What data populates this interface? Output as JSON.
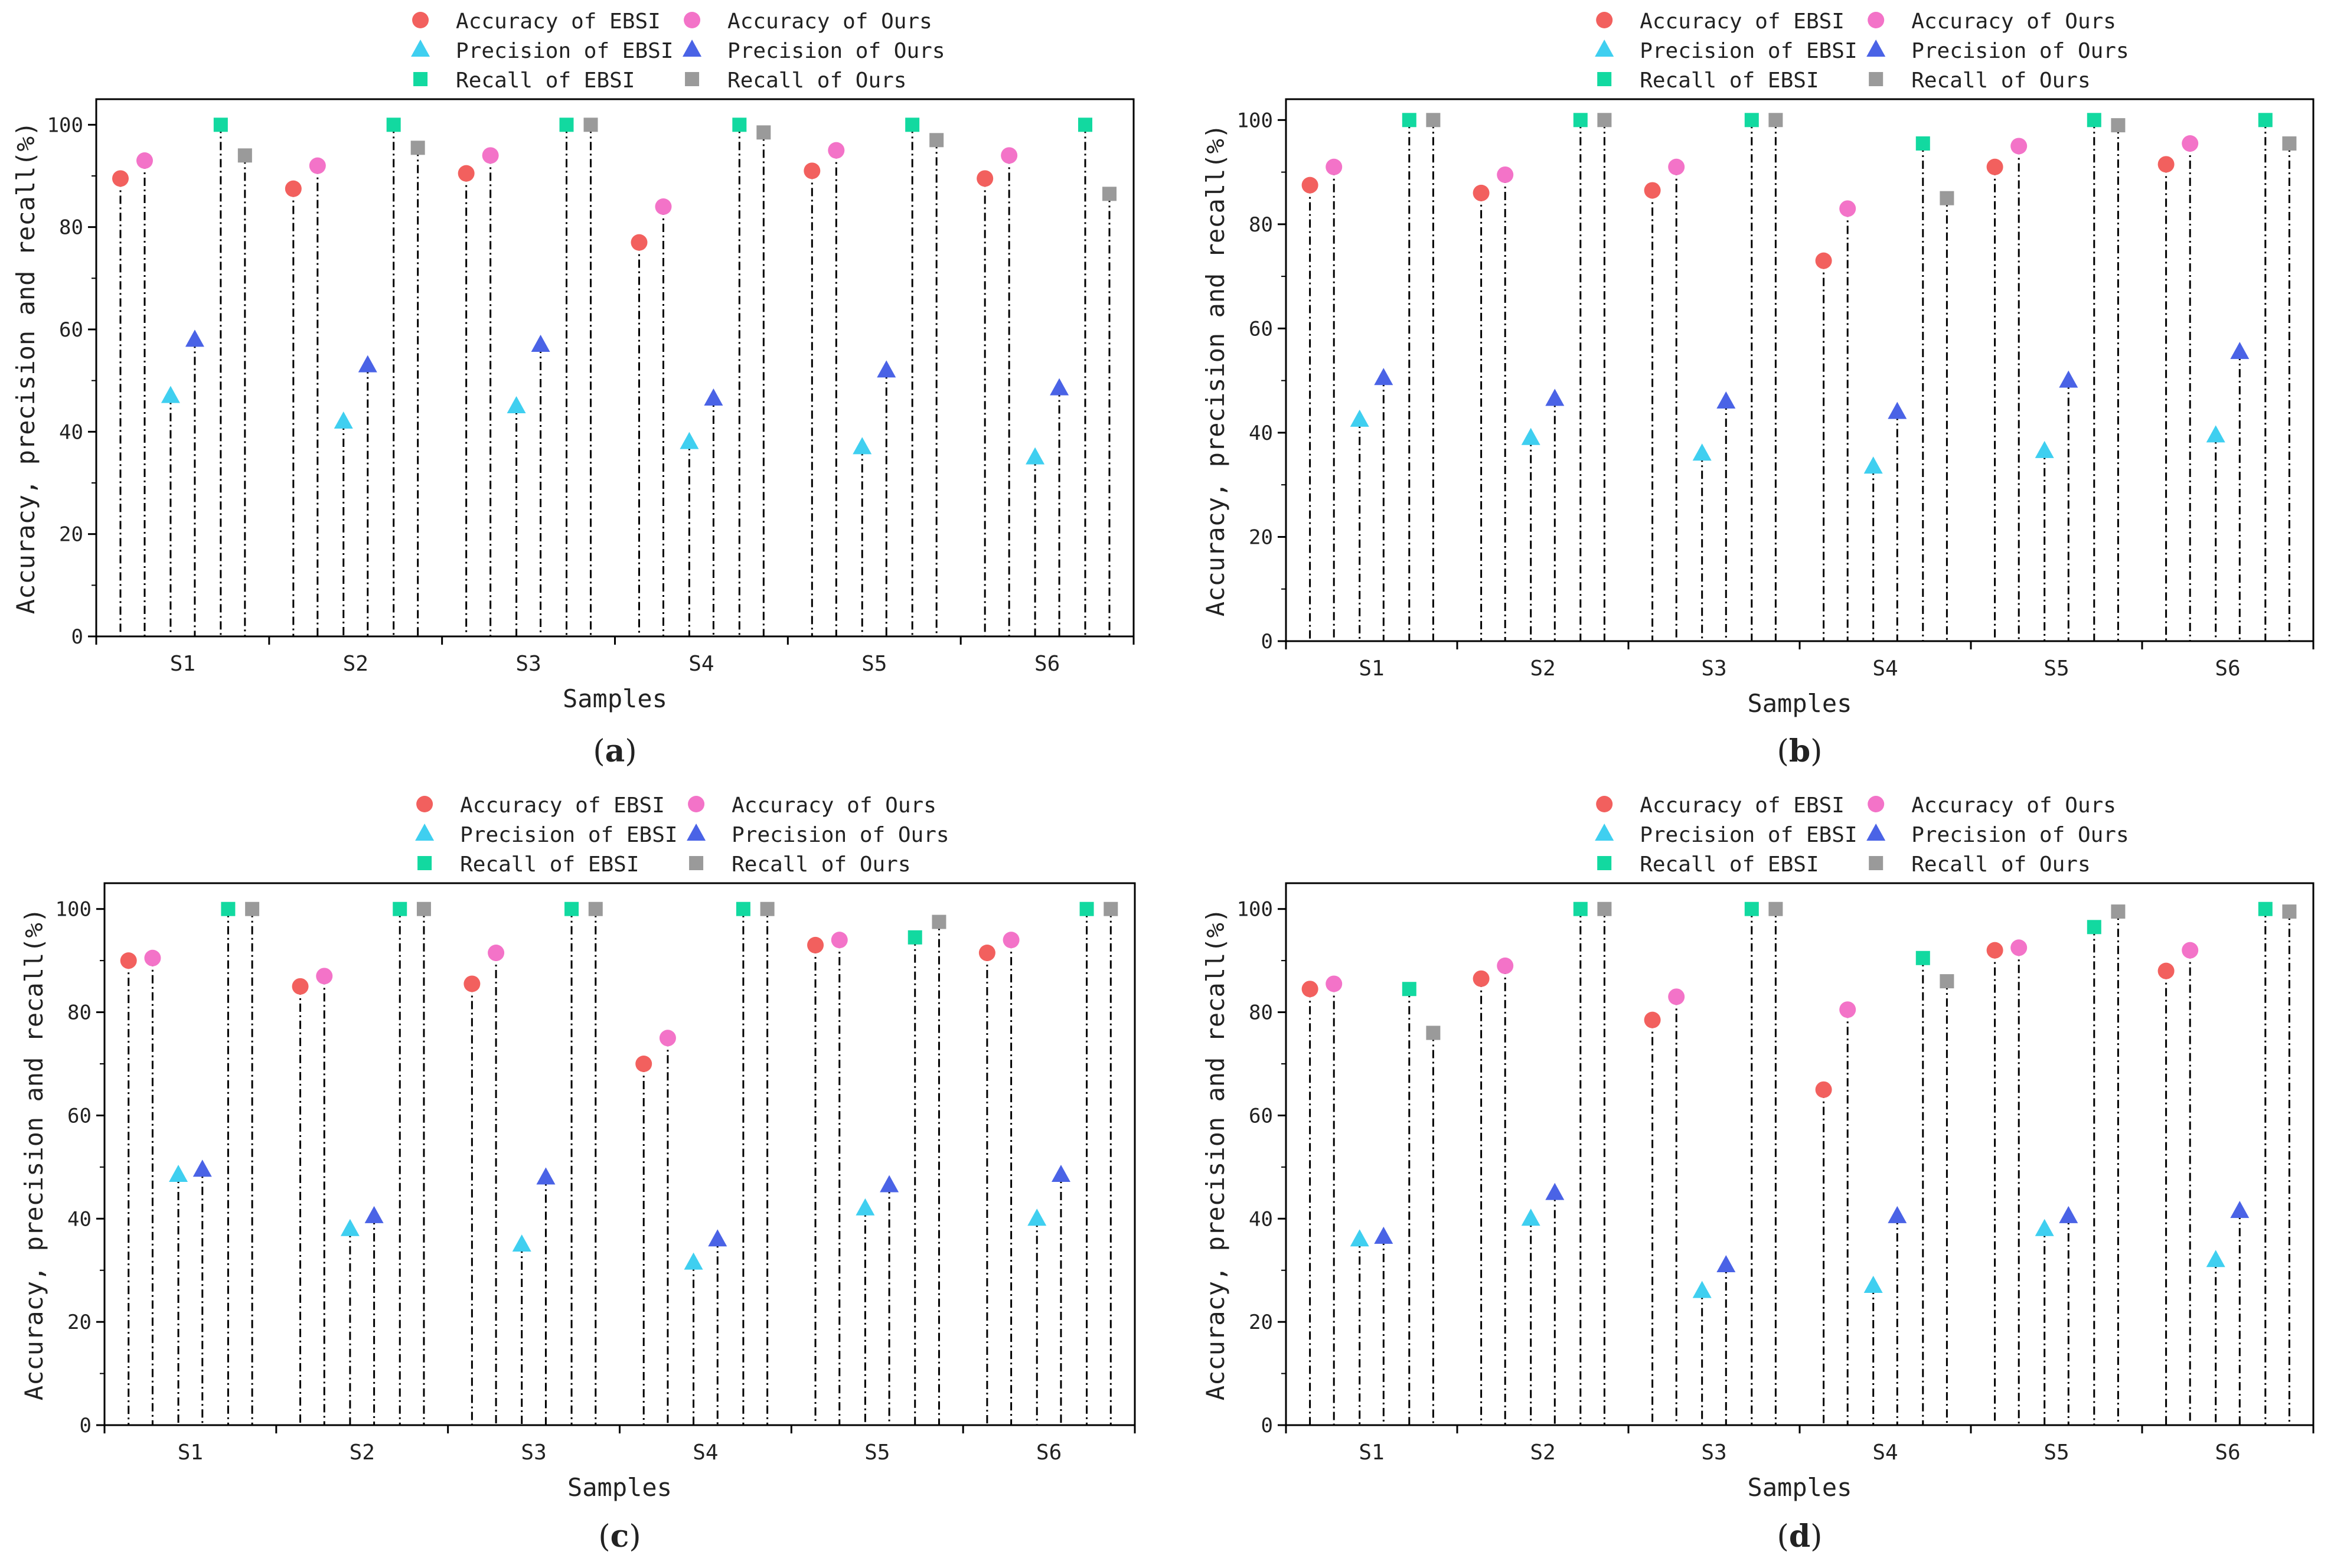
{
  "figure": {
    "series_styles": [
      {
        "name": "Accuracy of EBSI",
        "marker": "circle",
        "color": "#f2605e"
      },
      {
        "name": "Accuracy of Ours",
        "marker": "circle",
        "color": "#f373c8"
      },
      {
        "name": "Precision of EBSI",
        "marker": "triangle",
        "color": "#3fcff0"
      },
      {
        "name": "Precision of Ours",
        "marker": "triangle",
        "color": "#4a63e6"
      },
      {
        "name": "Recall of EBSI",
        "marker": "square",
        "color": "#12d9a0"
      },
      {
        "name": "Recall of Ours",
        "marker": "square",
        "color": "#9a9a9a"
      }
    ]
  },
  "chart_data": [
    {
      "panel": "a",
      "panel_label": {
        "open": "(",
        "letter": "a",
        "close": ")"
      },
      "type": "scatter",
      "title": "",
      "xlabel": "Samples",
      "ylabel": "Accuracy, precision and recall(%)",
      "categories": [
        "S1",
        "S2",
        "S3",
        "S4",
        "S5",
        "S6"
      ],
      "ylim": [
        0,
        105
      ],
      "yticks": [
        0,
        20,
        40,
        60,
        80,
        100
      ],
      "legend_position": "top-center",
      "series": [
        {
          "name": "Accuracy of EBSI",
          "values": [
            89.5,
            87.5,
            90.5,
            77,
            91,
            89.5
          ]
        },
        {
          "name": "Accuracy of Ours",
          "values": [
            93,
            92,
            94,
            84,
            95,
            94
          ]
        },
        {
          "name": "Precision of EBSI",
          "values": [
            47,
            42,
            45,
            38,
            37,
            35
          ]
        },
        {
          "name": "Precision of Ours",
          "values": [
            58,
            53,
            57,
            46.5,
            52,
            48.5
          ]
        },
        {
          "name": "Recall of EBSI",
          "values": [
            100,
            100,
            100,
            100,
            100,
            100
          ]
        },
        {
          "name": "Recall of Ours",
          "values": [
            94,
            95.5,
            100,
            98.5,
            97,
            86.5
          ]
        }
      ]
    },
    {
      "panel": "b",
      "panel_label": {
        "open": "(",
        "letter": "b",
        "close": ")"
      },
      "type": "scatter",
      "title": "",
      "xlabel": "Samples",
      "ylabel": "Accuracy, precision and recall(%)",
      "categories": [
        "S1",
        "S2",
        "S3",
        "S4",
        "S5",
        "S6"
      ],
      "ylim": [
        0,
        104
      ],
      "yticks": [
        0,
        20,
        40,
        60,
        80,
        100
      ],
      "legend_position": "top-center",
      "series": [
        {
          "name": "Accuracy of EBSI",
          "values": [
            87.5,
            86,
            86.5,
            73,
            91,
            91.5
          ]
        },
        {
          "name": "Accuracy of Ours",
          "values": [
            91,
            89.5,
            91,
            83,
            95,
            95.5
          ]
        },
        {
          "name": "Precision of EBSI",
          "values": [
            42.5,
            39,
            36,
            33.5,
            36.5,
            39.5
          ]
        },
        {
          "name": "Precision of Ours",
          "values": [
            50.5,
            46.5,
            46,
            44,
            50,
            55.5
          ]
        },
        {
          "name": "Recall of EBSI",
          "values": [
            100,
            100,
            100,
            95.5,
            100,
            100
          ]
        },
        {
          "name": "Recall of Ours",
          "values": [
            100,
            100,
            100,
            85,
            99,
            95.5
          ]
        }
      ]
    },
    {
      "panel": "c",
      "panel_label": {
        "open": "(",
        "letter": "c",
        "close": ")"
      },
      "type": "scatter",
      "title": "",
      "xlabel": "Samples",
      "ylabel": "Accuracy, precision and recall(%)",
      "categories": [
        "S1",
        "S2",
        "S3",
        "S4",
        "S5",
        "S6"
      ],
      "ylim": [
        0,
        105
      ],
      "yticks": [
        0,
        20,
        40,
        60,
        80,
        100
      ],
      "legend_position": "top-center",
      "series": [
        {
          "name": "Accuracy of EBSI",
          "values": [
            90,
            85,
            85.5,
            70,
            93,
            91.5
          ]
        },
        {
          "name": "Accuracy of Ours",
          "values": [
            90.5,
            87,
            91.5,
            75,
            94,
            94
          ]
        },
        {
          "name": "Precision of EBSI",
          "values": [
            48.5,
            38,
            35,
            31.5,
            42,
            40
          ]
        },
        {
          "name": "Precision of Ours",
          "values": [
            49.5,
            40.5,
            48,
            36,
            46.5,
            48.5
          ]
        },
        {
          "name": "Recall of EBSI",
          "values": [
            100,
            100,
            100,
            100,
            94.5,
            100
          ]
        },
        {
          "name": "Recall of Ours",
          "values": [
            100,
            100,
            100,
            100,
            97.5,
            100
          ]
        }
      ]
    },
    {
      "panel": "d",
      "panel_label": {
        "open": "(",
        "letter": "d",
        "close": ")"
      },
      "type": "scatter",
      "title": "",
      "xlabel": "Samples",
      "ylabel": "Accuracy, precision and recall(%)",
      "categories": [
        "S1",
        "S2",
        "S3",
        "S4",
        "S5",
        "S6"
      ],
      "ylim": [
        0,
        105
      ],
      "yticks": [
        0,
        20,
        40,
        60,
        80,
        100
      ],
      "legend_position": "top-center",
      "series": [
        {
          "name": "Accuracy of EBSI",
          "values": [
            84.5,
            86.5,
            78.5,
            65,
            92,
            88
          ]
        },
        {
          "name": "Accuracy of Ours",
          "values": [
            85.5,
            89,
            83,
            80.5,
            92.5,
            92
          ]
        },
        {
          "name": "Precision of EBSI",
          "values": [
            36,
            40,
            26,
            27,
            38,
            32
          ]
        },
        {
          "name": "Precision of Ours",
          "values": [
            36.5,
            45,
            31,
            40.5,
            40.5,
            41.5
          ]
        },
        {
          "name": "Recall of EBSI",
          "values": [
            84.5,
            100,
            100,
            90.5,
            96.5,
            100
          ]
        },
        {
          "name": "Recall of Ours",
          "values": [
            76,
            100,
            100,
            86,
            99.5,
            99.5
          ]
        }
      ]
    }
  ]
}
